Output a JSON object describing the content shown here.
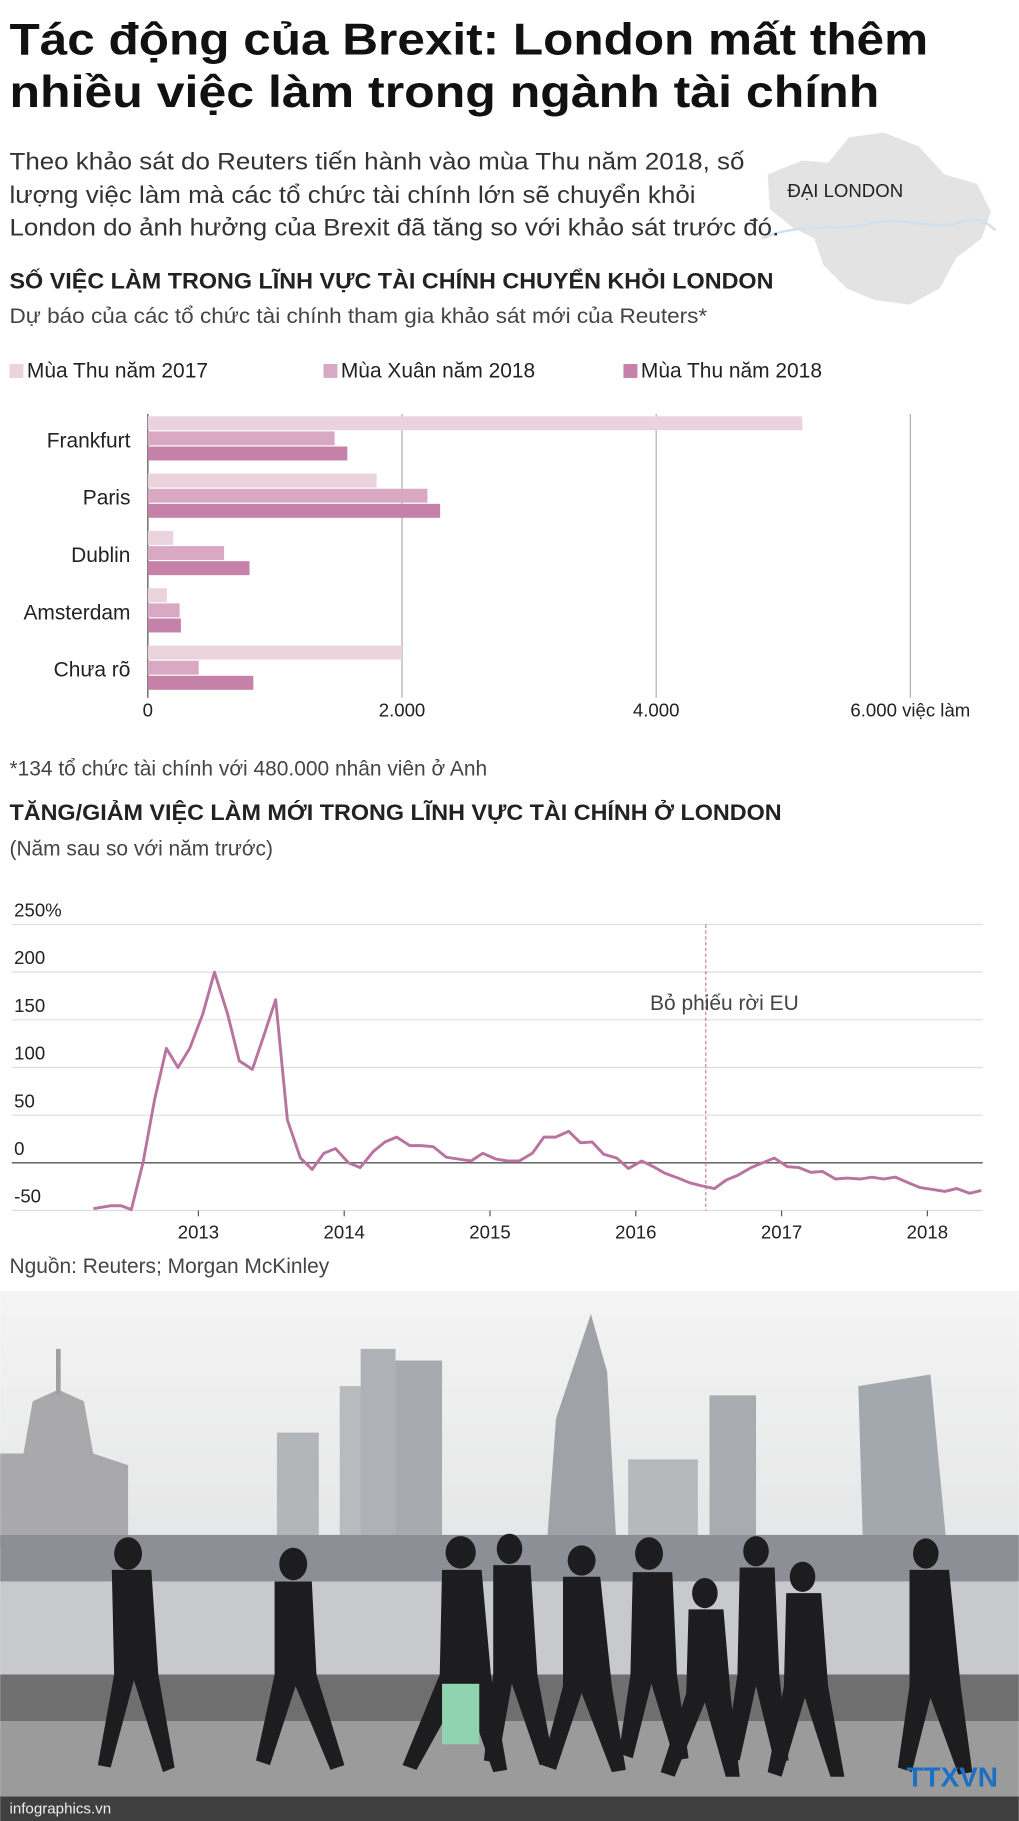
{
  "title": [
    "Tác động của Brexit: London mất thêm",
    "nhiều việc làm trong ngành tài chính"
  ],
  "intro": [
    "Theo khảo sát do Reuters tiến hành vào mùa Thu năm 2018, số",
    "lượng việc làm mà các tổ chức tài chính lớn sẽ chuyển khỏi",
    "London do ảnh hưởng của Brexit đã tăng so với khảo sát trước đó."
  ],
  "map_label": "ĐẠI LONDON",
  "footnote": "*134 tổ chức tài chính với 480.000 nhân viên ở Anh",
  "source": "Nguồn: Reuters; Morgan McKinley",
  "footer": {
    "site": "infographics.vn",
    "agency": "TTXVN"
  },
  "chart_data": [
    {
      "type": "bar",
      "orientation": "horizontal",
      "title": "SỐ VIỆC LÀM TRONG LĨNH VỰC TÀI CHÍNH CHUYỂN KHỎI LONDON",
      "subtitle": "Dự báo của các tổ chức tài chính tham gia khảo sát mới của Reuters*",
      "categories": [
        "Frankfurt",
        "Paris",
        "Dublin",
        "Amsterdam",
        "Chưa rõ"
      ],
      "series": [
        {
          "name": "Mùa Thu năm 2017",
          "color": "#ebd3de",
          "values": [
            5150,
            1800,
            200,
            150,
            2000
          ]
        },
        {
          "name": "Mùa Xuân năm 2018",
          "color": "#d9a9c3",
          "values": [
            1470,
            2200,
            600,
            250,
            400
          ]
        },
        {
          "name": "Mùa Thu năm 2018",
          "color": "#c581a8",
          "values": [
            1570,
            2300,
            800,
            260,
            830
          ]
        }
      ],
      "xlim": [
        0,
        6570
      ],
      "xticks": [
        0,
        {
          "value": 2000,
          "label": "2.000"
        },
        {
          "value": 4000,
          "label": "4.000"
        },
        {
          "value": 6000,
          "label": "6.000 việc làm"
        }
      ],
      "grid": true
    },
    {
      "type": "line",
      "title": "TĂNG/GIẢM VIỆC LÀM MỚI TRONG LĨNH VỰC TÀI CHÍNH Ở LONDON",
      "subtitle": "(Năm sau so với năm trước)",
      "color": "#b9739f",
      "x": [
        2012.28,
        2012.4,
        2012.47,
        2012.54,
        2012.62,
        2012.7,
        2012.78,
        2012.86,
        2012.94,
        2013.03,
        2013.11,
        2013.2,
        2013.28,
        2013.37,
        2013.45,
        2013.53,
        2013.61,
        2013.7,
        2013.78,
        2013.86,
        2013.94,
        2014.03,
        2014.11,
        2014.2,
        2014.28,
        2014.36,
        2014.45,
        2014.53,
        2014.61,
        2014.7,
        2014.78,
        2014.87,
        2014.95,
        2015.04,
        2015.12,
        2015.2,
        2015.29,
        2015.37,
        2015.45,
        2015.54,
        2015.62,
        2015.7,
        2015.78,
        2015.87,
        2015.95,
        2016.04,
        2016.12,
        2016.2,
        2016.29,
        2016.37,
        2016.45,
        2016.54,
        2016.62,
        2016.7,
        2016.79,
        2016.87,
        2016.95,
        2017.04,
        2017.12,
        2017.2,
        2017.28,
        2017.37,
        2017.45,
        2017.54,
        2017.62,
        2017.7,
        2017.78,
        2017.87,
        2017.95,
        2018.04,
        2018.12,
        2018.2,
        2018.29,
        2018.37
      ],
      "values": [
        -48,
        -45,
        -45,
        -49,
        0,
        67,
        120,
        100,
        120,
        156,
        200,
        156,
        107,
        98,
        134,
        171,
        45,
        5,
        -7,
        10,
        15,
        0,
        -5,
        12,
        22,
        27,
        18,
        18,
        17,
        6,
        4,
        2,
        10,
        4,
        2,
        2,
        10,
        27,
        27,
        33,
        21,
        22,
        9,
        5,
        -6,
        2,
        -4,
        -11,
        -16,
        -21,
        -24,
        -27,
        -18,
        -13,
        -5,
        0,
        5,
        -4,
        -5,
        -10,
        -9,
        -17,
        -16,
        -17,
        -15,
        -17,
        -15,
        -21,
        -26,
        -28,
        -30,
        -27,
        -32,
        -29
      ],
      "xlim": [
        2011.72,
        2018.38
      ],
      "xticks": [
        2013,
        2014,
        2015,
        2016,
        2017,
        2018
      ],
      "ylim": [
        -50,
        250
      ],
      "yticks": [
        {
          "value": 250,
          "label": "250%"
        },
        200,
        150,
        100,
        50,
        0,
        -50
      ],
      "grid": true,
      "annotations": [
        {
          "text": "Bỏ phiếu rời EU",
          "x": 2016.48
        }
      ]
    }
  ]
}
